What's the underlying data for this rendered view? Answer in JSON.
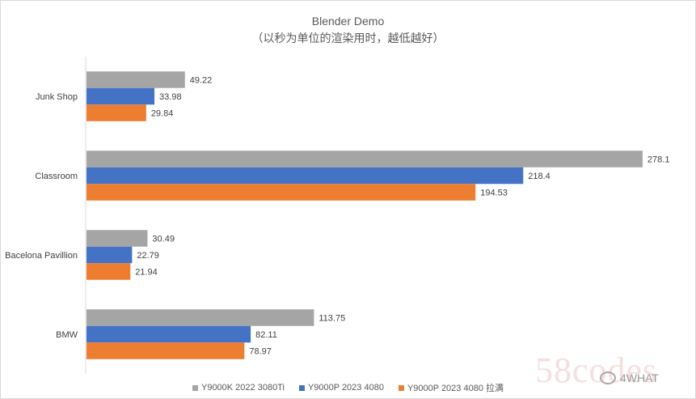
{
  "chart_data": {
    "type": "bar",
    "orientation": "horizontal",
    "title": "Blender Demo",
    "subtitle": "（以秒为单位的渲染用时，越低越好）",
    "categories": [
      "Junk Shop",
      "Classroom",
      "Bacelona Pavillion",
      "BMW"
    ],
    "series": [
      {
        "name": "Y9000K 2022 3080Ti",
        "color": "#a5a5a5",
        "values": [
          49.22,
          278.1,
          30.49,
          113.75
        ]
      },
      {
        "name": "Y9000P 2023 4080",
        "color": "#4472c4",
        "values": [
          33.98,
          218.4,
          22.79,
          82.11
        ]
      },
      {
        "name": "Y9000P 2023 4080 拉满",
        "color": "#ed7d31",
        "values": [
          29.84,
          194.53,
          21.94,
          78.97
        ]
      }
    ],
    "value_labels": [
      [
        "49.22",
        "278.1",
        "30.49",
        "113.75"
      ],
      [
        "33.98",
        "218.4",
        "22.79",
        "82.11"
      ],
      [
        "29.84",
        "194.53",
        "21.94",
        "78.97"
      ]
    ],
    "xlim": [
      0,
      285
    ],
    "grid": false,
    "legend_position": "bottom"
  },
  "watermark": {
    "text": "58codes",
    "handle": "4WHAT"
  }
}
